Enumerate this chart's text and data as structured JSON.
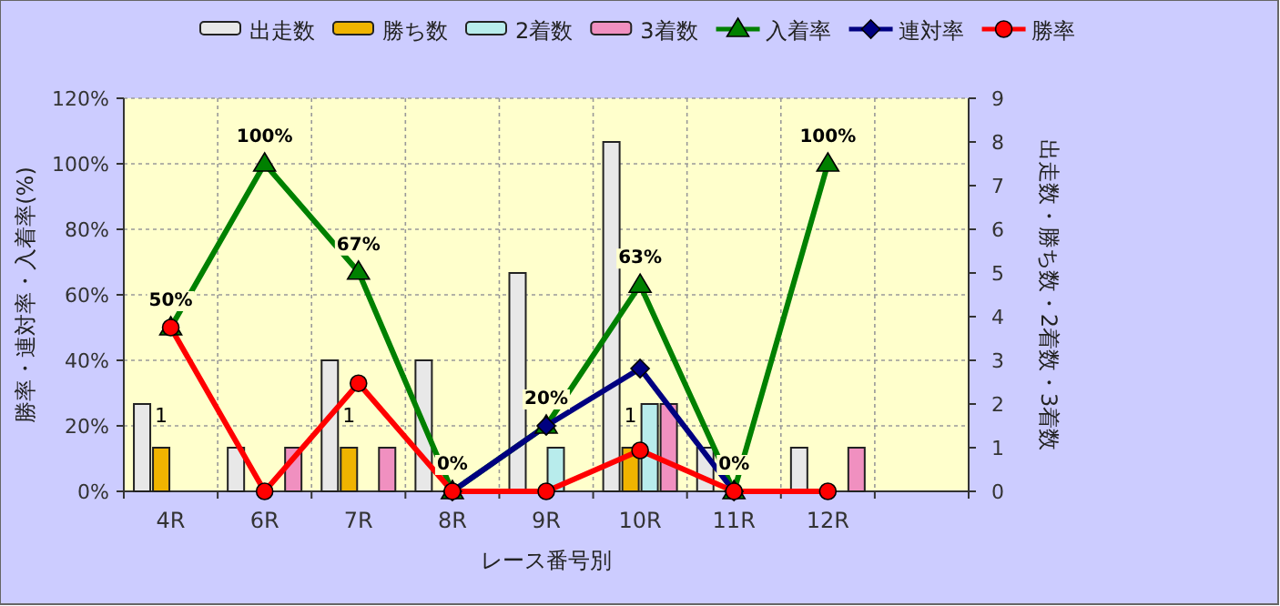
{
  "chart_data": {
    "type": "bar",
    "xlabel": "レース番号別",
    "ylabel": "勝率・連対率・入着率(%)",
    "y2label": "出走数・勝ち数・2着数・3着数",
    "categories": [
      "4R",
      "6R",
      "7R",
      "8R",
      "9R",
      "10R",
      "11R",
      "12R",
      null
    ],
    "series": [
      {
        "name": "出走数",
        "axis": "y2",
        "color": "#e8e8e8",
        "values": [
          2,
          1,
          3,
          3,
          5,
          8,
          1,
          1,
          null
        ]
      },
      {
        "name": "勝ち数",
        "axis": "y2",
        "color": "#f0b400",
        "values": [
          1,
          null,
          1,
          null,
          null,
          1,
          null,
          null,
          null
        ],
        "value_labels": [
          "1",
          null,
          "1",
          null,
          null,
          "1",
          null,
          null,
          null
        ]
      },
      {
        "name": "2着数",
        "axis": "y2",
        "color": "#b8ecec",
        "values": [
          null,
          null,
          null,
          null,
          1,
          2,
          null,
          null,
          null
        ]
      },
      {
        "name": "3着数",
        "axis": "y2",
        "color": "#f090c0",
        "values": [
          null,
          1,
          1,
          null,
          null,
          2,
          null,
          1,
          null
        ]
      },
      {
        "name": "入着率",
        "type": "line",
        "axis": "y",
        "color": "#008000",
        "marker": "triangle",
        "values": [
          50,
          100,
          67,
          0,
          20,
          63,
          0,
          100,
          null
        ],
        "value_labels": [
          "50%",
          "100%",
          "67%",
          "0%",
          "20%",
          "63%",
          "0%",
          "100%",
          null
        ]
      },
      {
        "name": "連対率",
        "type": "line",
        "axis": "y",
        "color": "#000080",
        "marker": "diamond",
        "values": [
          null,
          null,
          null,
          0,
          20,
          37.5,
          0,
          null,
          null
        ]
      },
      {
        "name": "勝率",
        "type": "line",
        "axis": "y",
        "color": "#ff0000",
        "marker": "circle",
        "values": [
          50,
          0,
          33,
          0,
          0,
          12.5,
          0,
          0,
          null
        ]
      }
    ],
    "ylim": [
      0,
      120
    ],
    "yticks": [
      {
        "value": 0,
        "label": "0%"
      },
      {
        "value": 20,
        "label": "20%"
      },
      {
        "value": 40,
        "label": "40%"
      },
      {
        "value": 60,
        "label": "60%"
      },
      {
        "value": 80,
        "label": "80%"
      },
      {
        "value": 100,
        "label": "100%"
      },
      {
        "value": 120,
        "label": "120%"
      }
    ],
    "y2lim": [
      0,
      9
    ],
    "y2ticks": [
      0,
      1,
      2,
      3,
      4,
      5,
      6,
      7,
      8,
      9
    ],
    "grid": true,
    "legend": "top"
  }
}
